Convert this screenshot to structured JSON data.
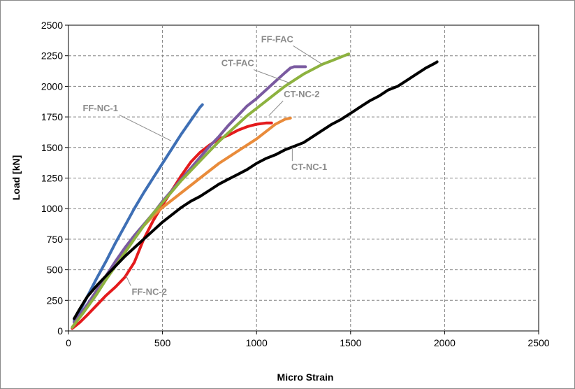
{
  "chart_data": {
    "type": "line",
    "title": "",
    "xlabel": "Micro Strain",
    "ylabel": "Load [kN]",
    "xlim": [
      0,
      2500
    ],
    "ylim": [
      0,
      2500
    ],
    "xticks": [
      0,
      500,
      1000,
      1500,
      2000,
      2500
    ],
    "yticks": [
      0,
      250,
      500,
      750,
      1000,
      1250,
      1500,
      1750,
      2000,
      2250,
      2500
    ],
    "grid": "dashed",
    "legend": "none (direct labels with leader lines)",
    "series": [
      {
        "name": "FF-NC-1",
        "color": "#3e6fb5",
        "points": [
          [
            30,
            80
          ],
          [
            60,
            160
          ],
          [
            100,
            280
          ],
          [
            150,
            430
          ],
          [
            200,
            570
          ],
          [
            250,
            720
          ],
          [
            300,
            860
          ],
          [
            350,
            1000
          ],
          [
            400,
            1130
          ],
          [
            450,
            1250
          ],
          [
            500,
            1370
          ],
          [
            550,
            1490
          ],
          [
            600,
            1610
          ],
          [
            650,
            1720
          ],
          [
            700,
            1830
          ],
          [
            712,
            1850
          ]
        ]
      },
      {
        "name": "FF-NC-2",
        "color": "#e41a1c",
        "points": [
          [
            20,
            20
          ],
          [
            60,
            70
          ],
          [
            100,
            130
          ],
          [
            150,
            210
          ],
          [
            200,
            290
          ],
          [
            250,
            360
          ],
          [
            300,
            440
          ],
          [
            350,
            560
          ],
          [
            400,
            750
          ],
          [
            450,
            900
          ],
          [
            500,
            1030
          ],
          [
            550,
            1150
          ],
          [
            600,
            1270
          ],
          [
            650,
            1380
          ],
          [
            700,
            1460
          ],
          [
            750,
            1520
          ],
          [
            800,
            1570
          ],
          [
            850,
            1600
          ],
          [
            900,
            1640
          ],
          [
            950,
            1670
          ],
          [
            1000,
            1690
          ],
          [
            1050,
            1700
          ],
          [
            1080,
            1700
          ]
        ]
      },
      {
        "name": "CT-NC-2",
        "color": "#e98b3a",
        "points": [
          [
            20,
            30
          ],
          [
            80,
            160
          ],
          [
            150,
            330
          ],
          [
            200,
            450
          ],
          [
            250,
            560
          ],
          [
            300,
            660
          ],
          [
            350,
            760
          ],
          [
            400,
            860
          ],
          [
            450,
            940
          ],
          [
            500,
            1010
          ],
          [
            550,
            1070
          ],
          [
            600,
            1130
          ],
          [
            650,
            1190
          ],
          [
            700,
            1250
          ],
          [
            750,
            1310
          ],
          [
            800,
            1370
          ],
          [
            850,
            1420
          ],
          [
            900,
            1470
          ],
          [
            950,
            1520
          ],
          [
            1000,
            1570
          ],
          [
            1050,
            1630
          ],
          [
            1100,
            1690
          ],
          [
            1150,
            1730
          ],
          [
            1180,
            1740
          ]
        ]
      },
      {
        "name": "CT-FAC",
        "color": "#7a5aa0",
        "points": [
          [
            30,
            70
          ],
          [
            80,
            170
          ],
          [
            150,
            330
          ],
          [
            200,
            450
          ],
          [
            250,
            570
          ],
          [
            300,
            680
          ],
          [
            350,
            780
          ],
          [
            400,
            870
          ],
          [
            450,
            960
          ],
          [
            500,
            1060
          ],
          [
            550,
            1150
          ],
          [
            600,
            1240
          ],
          [
            650,
            1330
          ],
          [
            700,
            1420
          ],
          [
            750,
            1510
          ],
          [
            800,
            1590
          ],
          [
            850,
            1680
          ],
          [
            900,
            1760
          ],
          [
            950,
            1840
          ],
          [
            1000,
            1900
          ],
          [
            1050,
            1970
          ],
          [
            1100,
            2040
          ],
          [
            1150,
            2110
          ],
          [
            1180,
            2150
          ],
          [
            1200,
            2160
          ],
          [
            1260,
            2160
          ]
        ]
      },
      {
        "name": "FF-FAC",
        "color": "#8db23f",
        "points": [
          [
            20,
            30
          ],
          [
            80,
            150
          ],
          [
            150,
            300
          ],
          [
            200,
            420
          ],
          [
            250,
            530
          ],
          [
            300,
            640
          ],
          [
            350,
            750
          ],
          [
            400,
            860
          ],
          [
            450,
            960
          ],
          [
            500,
            1050
          ],
          [
            550,
            1140
          ],
          [
            600,
            1230
          ],
          [
            650,
            1310
          ],
          [
            700,
            1390
          ],
          [
            750,
            1470
          ],
          [
            800,
            1550
          ],
          [
            850,
            1620
          ],
          [
            900,
            1690
          ],
          [
            950,
            1760
          ],
          [
            1000,
            1820
          ],
          [
            1050,
            1880
          ],
          [
            1100,
            1940
          ],
          [
            1150,
            2000
          ],
          [
            1200,
            2050
          ],
          [
            1250,
            2100
          ],
          [
            1300,
            2140
          ],
          [
            1350,
            2180
          ],
          [
            1400,
            2210
          ],
          [
            1450,
            2240
          ],
          [
            1490,
            2265
          ]
        ]
      },
      {
        "name": "CT-NC-1",
        "color": "#000000",
        "points": [
          [
            30,
            100
          ],
          [
            60,
            180
          ],
          [
            100,
            280
          ],
          [
            150,
            370
          ],
          [
            200,
            450
          ],
          [
            250,
            530
          ],
          [
            300,
            610
          ],
          [
            350,
            680
          ],
          [
            400,
            750
          ],
          [
            450,
            820
          ],
          [
            500,
            890
          ],
          [
            550,
            950
          ],
          [
            600,
            1010
          ],
          [
            650,
            1060
          ],
          [
            700,
            1100
          ],
          [
            750,
            1150
          ],
          [
            800,
            1200
          ],
          [
            850,
            1240
          ],
          [
            900,
            1280
          ],
          [
            950,
            1320
          ],
          [
            1000,
            1370
          ],
          [
            1050,
            1410
          ],
          [
            1100,
            1440
          ],
          [
            1150,
            1480
          ],
          [
            1200,
            1510
          ],
          [
            1250,
            1540
          ],
          [
            1300,
            1590
          ],
          [
            1350,
            1640
          ],
          [
            1400,
            1690
          ],
          [
            1450,
            1730
          ],
          [
            1500,
            1780
          ],
          [
            1550,
            1830
          ],
          [
            1600,
            1880
          ],
          [
            1650,
            1920
          ],
          [
            1700,
            1970
          ],
          [
            1750,
            2000
          ],
          [
            1800,
            2050
          ],
          [
            1850,
            2100
          ],
          [
            1900,
            2150
          ],
          [
            1950,
            2190
          ],
          [
            1960,
            2200
          ]
        ]
      }
    ],
    "annotations": [
      {
        "text": "FF-NC-1",
        "label_at": [
          170,
          1795
        ],
        "target": [
          545,
          1555
        ]
      },
      {
        "text": "CT-FAC",
        "label_at": [
          900,
          2165
        ],
        "target": [
          1180,
          2025
        ]
      },
      {
        "text": "FF-FAC",
        "label_at": [
          1110,
          2360
        ],
        "target": [
          1350,
          2180
        ]
      },
      {
        "text": "CT-NC-2",
        "label_at": [
          1240,
          1910
        ],
        "target": [
          1065,
          1760
        ]
      },
      {
        "text": "CT-NC-1",
        "label_at": [
          1280,
          1315
        ],
        "target": [
          1190,
          1500
        ]
      },
      {
        "text": "FF-NC-2",
        "label_at": [
          430,
          295
        ],
        "target": [
          305,
          455
        ]
      }
    ]
  }
}
